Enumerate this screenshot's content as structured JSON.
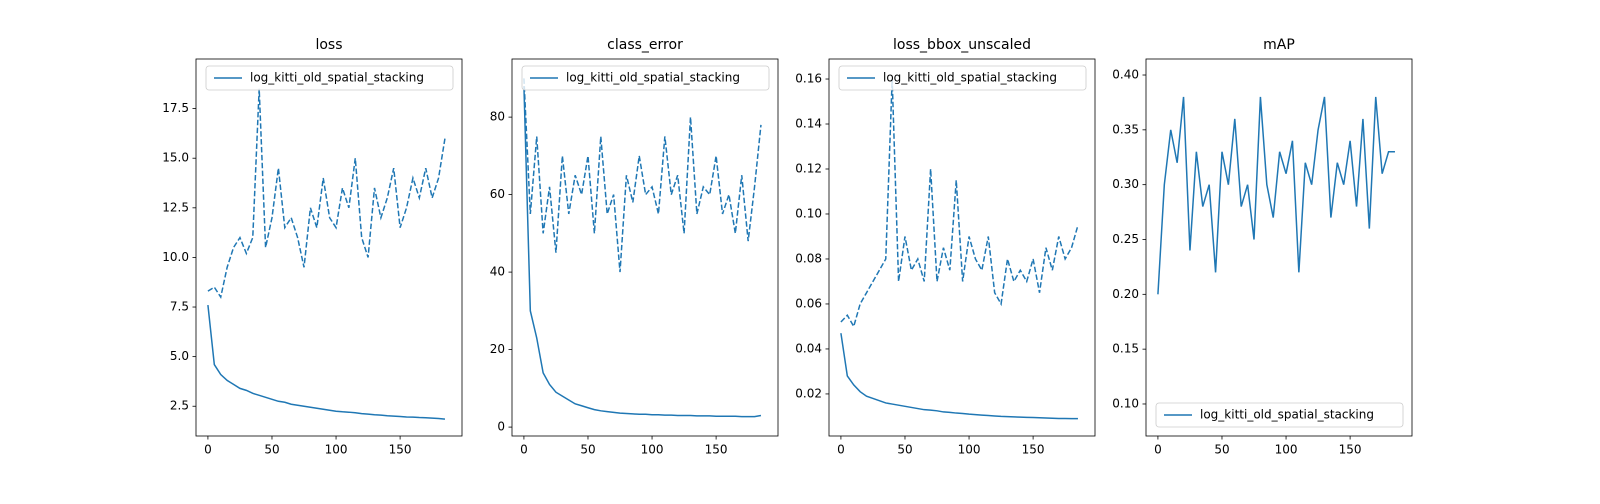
{
  "chart_data": [
    {
      "type": "line",
      "title": "loss",
      "x": [
        0,
        5,
        10,
        15,
        20,
        25,
        30,
        35,
        40,
        45,
        50,
        55,
        60,
        65,
        70,
        75,
        80,
        85,
        90,
        95,
        100,
        105,
        110,
        115,
        120,
        125,
        130,
        135,
        140,
        145,
        150,
        155,
        160,
        165,
        170,
        175,
        180,
        185
      ],
      "series": [
        {
          "name": "log_kitti_old_spatial_stacking",
          "color": "#1f77b4",
          "values": [
            7.6,
            4.6,
            4.1,
            3.8,
            3.6,
            3.4,
            3.3,
            3.15,
            3.05,
            2.95,
            2.85,
            2.75,
            2.7,
            2.6,
            2.55,
            2.5,
            2.45,
            2.4,
            2.35,
            2.3,
            2.25,
            2.22,
            2.2,
            2.17,
            2.13,
            2.1,
            2.07,
            2.05,
            2.02,
            2.0,
            1.98,
            1.96,
            1.95,
            1.93,
            1.92,
            1.9,
            1.88,
            1.85
          ]
        },
        {
          "color": "#1f77b4",
          "dashed": true,
          "values": [
            8.3,
            8.5,
            8.0,
            9.5,
            10.5,
            11.0,
            10.2,
            11.0,
            18.5,
            10.5,
            12.0,
            14.5,
            11.5,
            12.0,
            11.0,
            9.5,
            12.5,
            11.5,
            14.0,
            12.0,
            11.5,
            13.5,
            12.5,
            15.0,
            11.0,
            10.0,
            13.5,
            12.0,
            13.0,
            14.5,
            11.5,
            12.5,
            14.0,
            13.0,
            14.5,
            13.0,
            14.0,
            16.0
          ]
        }
      ],
      "xlim": [
        -9.3,
        198.3
      ],
      "ylim": [
        1.0,
        20.0
      ],
      "xticks": [
        0,
        50,
        100,
        150
      ],
      "yticks": [
        2.5,
        {
          "value": 5,
          "label": "5.0"
        },
        7.5,
        {
          "value": 10,
          "label": "10.0"
        },
        12.5,
        {
          "value": 15,
          "label": "15.0"
        },
        17.5
      ],
      "legend": "upper right"
    },
    {
      "type": "line",
      "title": "class_error",
      "x": [
        0,
        5,
        10,
        15,
        20,
        25,
        30,
        35,
        40,
        45,
        50,
        55,
        60,
        65,
        70,
        75,
        80,
        85,
        90,
        95,
        100,
        105,
        110,
        115,
        120,
        125,
        130,
        135,
        140,
        145,
        150,
        155,
        160,
        165,
        170,
        175,
        180,
        185
      ],
      "series": [
        {
          "name": "log_kitti_old_spatial_stacking",
          "color": "#1f77b4",
          "values": [
            88,
            30,
            23,
            14,
            11,
            9,
            8,
            7,
            6,
            5.5,
            5,
            4.5,
            4.2,
            4,
            3.8,
            3.6,
            3.5,
            3.4,
            3.3,
            3.3,
            3.2,
            3.2,
            3.1,
            3.1,
            3.0,
            3.0,
            3.0,
            2.9,
            2.9,
            2.9,
            2.8,
            2.8,
            2.8,
            2.8,
            2.7,
            2.7,
            2.7,
            3.0
          ]
        },
        {
          "color": "#1f77b4",
          "dashed": true,
          "values": [
            90,
            55,
            75,
            50,
            62,
            45,
            70,
            55,
            65,
            60,
            70,
            50,
            75,
            55,
            60,
            40,
            65,
            58,
            70,
            60,
            62,
            55,
            75,
            60,
            65,
            50,
            80,
            55,
            62,
            60,
            70,
            55,
            60,
            50,
            65,
            48,
            62,
            78
          ]
        }
      ],
      "xlim": [
        -9.3,
        198.3
      ],
      "ylim": [
        -2.3,
        95
      ],
      "xticks": [
        0,
        50,
        100,
        150
      ],
      "yticks": [
        0,
        20,
        40,
        60,
        80
      ],
      "legend": "upper right"
    },
    {
      "type": "line",
      "title": "loss_bbox_unscaled",
      "x": [
        0,
        5,
        10,
        15,
        20,
        25,
        30,
        35,
        40,
        45,
        50,
        55,
        60,
        65,
        70,
        75,
        80,
        85,
        90,
        95,
        100,
        105,
        110,
        115,
        120,
        125,
        130,
        135,
        140,
        145,
        150,
        155,
        160,
        165,
        170,
        175,
        180,
        185
      ],
      "series": [
        {
          "name": "log_kitti_old_spatial_stacking",
          "color": "#1f77b4",
          "values": [
            0.047,
            0.028,
            0.024,
            0.021,
            0.019,
            0.018,
            0.017,
            0.016,
            0.0155,
            0.015,
            0.0145,
            0.014,
            0.0135,
            0.013,
            0.0128,
            0.0125,
            0.012,
            0.0118,
            0.0115,
            0.0113,
            0.011,
            0.0108,
            0.0106,
            0.0104,
            0.0102,
            0.01,
            0.0099,
            0.0098,
            0.0097,
            0.0096,
            0.0095,
            0.0094,
            0.0093,
            0.0092,
            0.0091,
            0.0091,
            0.009,
            0.009
          ]
        },
        {
          "color": "#1f77b4",
          "dashed": true,
          "values": [
            0.052,
            0.055,
            0.05,
            0.06,
            0.065,
            0.07,
            0.075,
            0.08,
            0.16,
            0.07,
            0.09,
            0.075,
            0.08,
            0.07,
            0.12,
            0.07,
            0.085,
            0.075,
            0.115,
            0.07,
            0.09,
            0.08,
            0.075,
            0.09,
            0.065,
            0.06,
            0.08,
            0.07,
            0.075,
            0.07,
            0.08,
            0.065,
            0.085,
            0.075,
            0.09,
            0.08,
            0.085,
            0.095
          ]
        }
      ],
      "xlim": [
        -9.3,
        198.3
      ],
      "ylim": [
        0.0013,
        0.1689
      ],
      "xticks": [
        0,
        50,
        100,
        150
      ],
      "yticks": [
        0.02,
        0.04,
        0.06,
        0.08,
        {
          "value": 0.1,
          "label": "0.10"
        },
        0.12,
        0.14,
        0.16
      ],
      "legend": "upper right"
    },
    {
      "type": "line",
      "title": "mAP",
      "x": [
        0,
        5,
        10,
        15,
        20,
        25,
        30,
        35,
        40,
        45,
        50,
        55,
        60,
        65,
        70,
        75,
        80,
        85,
        90,
        95,
        100,
        105,
        110,
        115,
        120,
        125,
        130,
        135,
        140,
        145,
        150,
        155,
        160,
        165,
        170,
        175,
        180,
        185
      ],
      "series": [
        {
          "name": "log_kitti_old_spatial_stacking",
          "color": "#1f77b4",
          "values": [
            0.2,
            0.3,
            0.35,
            0.32,
            0.38,
            0.24,
            0.33,
            0.28,
            0.3,
            0.22,
            0.33,
            0.3,
            0.36,
            0.28,
            0.3,
            0.25,
            0.38,
            0.3,
            0.27,
            0.33,
            0.31,
            0.34,
            0.22,
            0.32,
            0.3,
            0.35,
            0.38,
            0.27,
            0.32,
            0.3,
            0.34,
            0.28,
            0.36,
            0.26,
            0.38,
            0.31,
            0.33,
            0.33
          ]
        }
      ],
      "xlim": [
        -9.3,
        198.3
      ],
      "ylim": [
        0.0708,
        0.4146
      ],
      "xticks": [
        0,
        50,
        100,
        150
      ],
      "yticks": [
        {
          "value": 0.1,
          "label": "0.10"
        },
        0.15,
        {
          "value": 0.2,
          "label": "0.20"
        },
        0.25,
        {
          "value": 0.3,
          "label": "0.30"
        },
        0.35,
        {
          "value": 0.4,
          "label": "0.40"
        }
      ],
      "legend": "lower right"
    }
  ]
}
